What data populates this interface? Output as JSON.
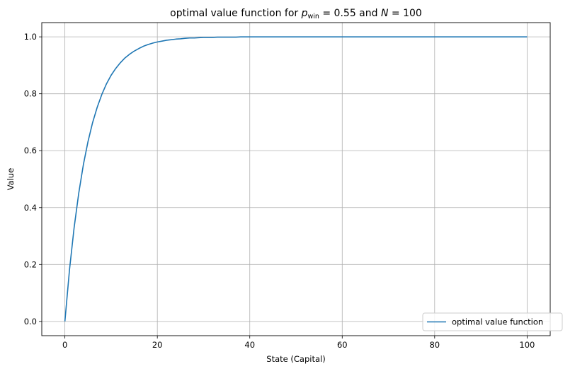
{
  "chart_data": {
    "type": "line",
    "title_prefix": "optimal value function for ",
    "title_p": "p",
    "title_p_sub": "win",
    "title_p_eq": " = 0.55 and ",
    "title_n": "N",
    "title_n_eq": " = 100",
    "xlabel": "State (Capital)",
    "ylabel": "Value",
    "xlim": [
      -5,
      105
    ],
    "ylim": [
      -0.05,
      1.05
    ],
    "xticks": [
      0,
      20,
      40,
      60,
      80,
      100
    ],
    "xtick_labels": [
      "0",
      "20",
      "40",
      "60",
      "80",
      "100"
    ],
    "yticks": [
      0.0,
      0.2,
      0.4,
      0.6,
      0.8,
      1.0
    ],
    "ytick_labels": [
      "0.0",
      "0.2",
      "0.4",
      "0.6",
      "0.8",
      "1.0"
    ],
    "grid": true,
    "legend_position": "lower-right",
    "series": [
      {
        "name": "optimal value function",
        "color": "#1f77b4",
        "x": [
          0,
          1,
          2,
          3,
          4,
          5,
          6,
          7,
          8,
          9,
          10,
          11,
          12,
          13,
          14,
          15,
          16,
          17,
          18,
          19,
          20,
          21,
          22,
          23,
          24,
          25,
          26,
          27,
          28,
          29,
          30,
          31,
          32,
          33,
          34,
          35,
          36,
          37,
          38,
          39,
          40,
          41,
          42,
          43,
          44,
          45,
          46,
          47,
          48,
          49,
          50,
          51,
          52,
          53,
          54,
          55,
          56,
          57,
          58,
          59,
          60,
          61,
          62,
          63,
          64,
          65,
          66,
          67,
          68,
          69,
          70,
          71,
          72,
          73,
          74,
          75,
          76,
          77,
          78,
          79,
          80,
          81,
          82,
          83,
          84,
          85,
          86,
          87,
          88,
          89,
          90,
          91,
          92,
          93,
          94,
          95,
          96,
          97,
          98,
          99,
          100
        ],
        "y": [
          0.0,
          0.182,
          0.33,
          0.451,
          0.551,
          0.632,
          0.699,
          0.753,
          0.798,
          0.835,
          0.865,
          0.889,
          0.909,
          0.926,
          0.939,
          0.95,
          0.959,
          0.967,
          0.973,
          0.978,
          0.982,
          0.985,
          0.988,
          0.99,
          0.992,
          0.993,
          0.995,
          0.996,
          0.996,
          0.997,
          0.998,
          0.998,
          0.998,
          0.999,
          0.999,
          0.999,
          0.999,
          0.999,
          1.0,
          1.0,
          1.0,
          1.0,
          1.0,
          1.0,
          1.0,
          1.0,
          1.0,
          1.0,
          1.0,
          1.0,
          1.0,
          1.0,
          1.0,
          1.0,
          1.0,
          1.0,
          1.0,
          1.0,
          1.0,
          1.0,
          1.0,
          1.0,
          1.0,
          1.0,
          1.0,
          1.0,
          1.0,
          1.0,
          1.0,
          1.0,
          1.0,
          1.0,
          1.0,
          1.0,
          1.0,
          1.0,
          1.0,
          1.0,
          1.0,
          1.0,
          1.0,
          1.0,
          1.0,
          1.0,
          1.0,
          1.0,
          1.0,
          1.0,
          1.0,
          1.0,
          1.0,
          1.0,
          1.0,
          1.0,
          1.0,
          1.0,
          1.0,
          1.0,
          1.0,
          1.0,
          1.0
        ]
      }
    ]
  }
}
